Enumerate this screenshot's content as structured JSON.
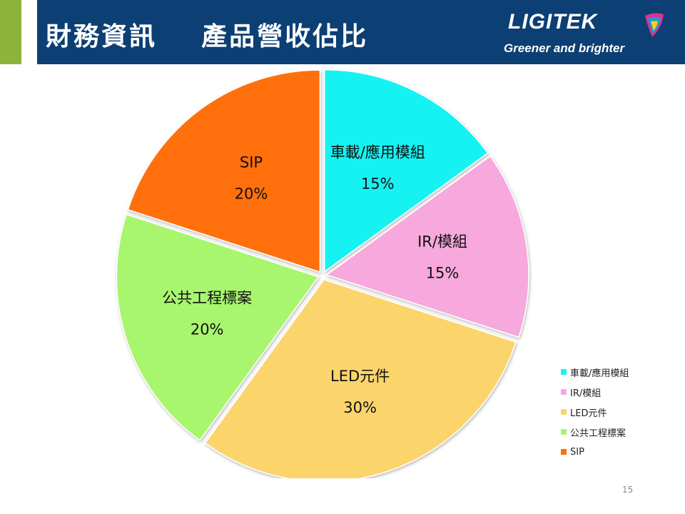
{
  "header": {
    "title": "財務資訊    產品營收佔比",
    "logo_text": "LIGITEK",
    "tagline": "Greener and brighter",
    "accent_color": "#8db33a",
    "background_color": "#0c3f73"
  },
  "chart_data": {
    "type": "pie",
    "title": "",
    "start_angle_deg": 0,
    "direction": "clockwise",
    "exploded": true,
    "legend_position": "right-bottom",
    "slices": [
      {
        "label": "車載/應用模組",
        "value": 15,
        "display": "15%",
        "color": "#19f2f2"
      },
      {
        "label": "IR/模組",
        "value": 15,
        "display": "15%",
        "color": "#f7a8dc"
      },
      {
        "label": "LED元件",
        "value": 30,
        "display": "30%",
        "color": "#fbd46c"
      },
      {
        "label": "公共工程標案",
        "value": 20,
        "display": "20%",
        "color": "#a8f56e"
      },
      {
        "label": "SIP",
        "value": 20,
        "display": "20%",
        "color": "#ff6f0a"
      }
    ]
  },
  "footer": {
    "page_number": "15"
  }
}
